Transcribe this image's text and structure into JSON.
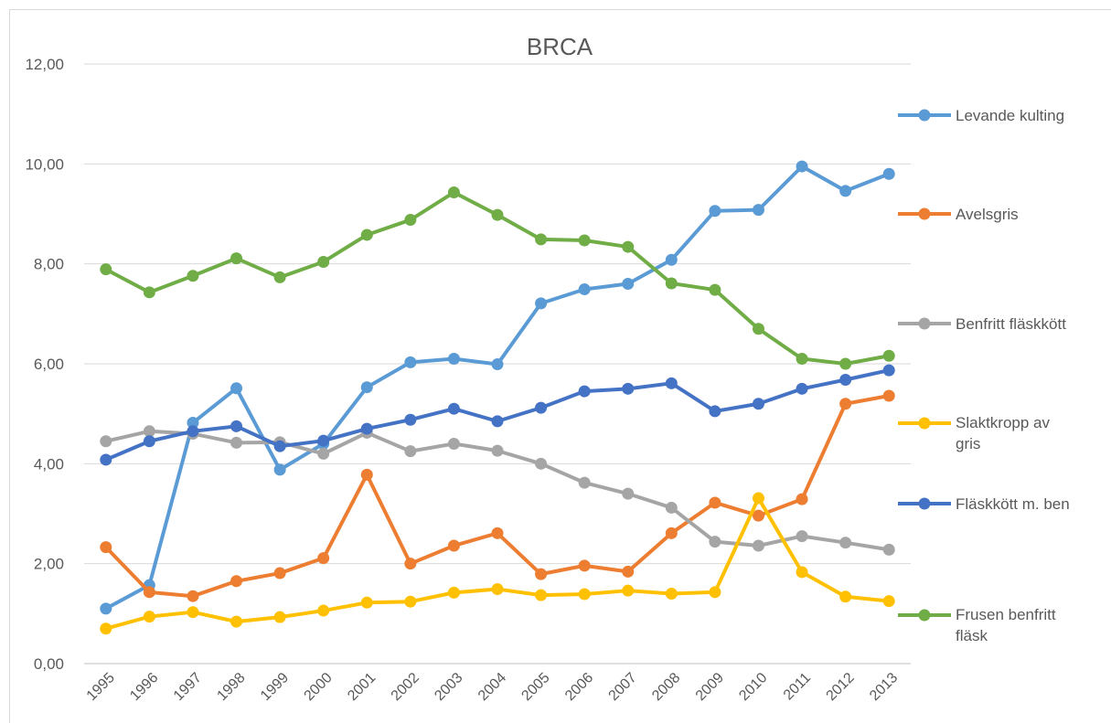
{
  "chart_data": {
    "type": "line",
    "title": "BRCA",
    "categories": [
      "1995",
      "1996",
      "1997",
      "1998",
      "1999",
      "2000",
      "2001",
      "2002",
      "2003",
      "2004",
      "2005",
      "2006",
      "2007",
      "2008",
      "2009",
      "2010",
      "2011",
      "2012",
      "2013"
    ],
    "ylim": [
      0,
      12
    ],
    "yticks": [
      {
        "value": 0,
        "label": "0,00"
      },
      {
        "value": 2,
        "label": "2,00"
      },
      {
        "value": 4,
        "label": "4,00"
      },
      {
        "value": 6,
        "label": "6,00"
      },
      {
        "value": 8,
        "label": "8,00"
      },
      {
        "value": 10,
        "label": "10,00"
      },
      {
        "value": 12,
        "label": "12,00"
      }
    ],
    "grid": true,
    "legend": "right",
    "series": [
      {
        "name": "Levande kulting",
        "color": "#5b9bd5",
        "values": [
          1.1,
          1.57,
          4.82,
          5.51,
          3.88,
          4.4,
          5.53,
          6.03,
          6.1,
          5.99,
          7.21,
          7.49,
          7.6,
          8.08,
          9.06,
          9.08,
          9.95,
          9.46,
          9.8
        ]
      },
      {
        "name": "Avelsgris",
        "color": "#ed7d31",
        "values": [
          2.33,
          1.43,
          1.35,
          1.65,
          1.81,
          2.11,
          3.78,
          2.0,
          2.36,
          2.61,
          1.79,
          1.96,
          1.84,
          2.61,
          3.22,
          2.96,
          3.29,
          5.2,
          5.36
        ]
      },
      {
        "name": "Benfritt fläskkött",
        "color": "#a5a5a5",
        "values": [
          4.45,
          4.65,
          4.6,
          4.42,
          4.43,
          4.2,
          4.62,
          4.25,
          4.4,
          4.26,
          4.0,
          3.62,
          3.4,
          3.12,
          2.44,
          2.36,
          2.55,
          2.42,
          2.28
        ]
      },
      {
        "name": "Slaktkropp av gris",
        "color": "#ffc000",
        "values": [
          0.7,
          0.94,
          1.03,
          0.84,
          0.93,
          1.06,
          1.22,
          1.24,
          1.42,
          1.49,
          1.37,
          1.39,
          1.46,
          1.4,
          1.43,
          3.31,
          1.83,
          1.34,
          1.25
        ]
      },
      {
        "name": "Fläskkött m. ben",
        "color": "#4472c4",
        "values": [
          4.08,
          4.45,
          4.65,
          4.75,
          4.35,
          4.46,
          4.7,
          4.88,
          5.1,
          4.85,
          5.12,
          5.45,
          5.5,
          5.61,
          5.05,
          5.2,
          5.5,
          5.68,
          5.87
        ]
      },
      {
        "name": "Frusen benfritt fläsk",
        "color": "#70ad47",
        "values": [
          7.89,
          7.43,
          7.76,
          8.11,
          7.73,
          8.04,
          8.58,
          8.88,
          9.43,
          8.98,
          8.49,
          8.47,
          8.34,
          7.61,
          7.48,
          6.7,
          6.1,
          6.0,
          6.16
        ]
      }
    ]
  }
}
